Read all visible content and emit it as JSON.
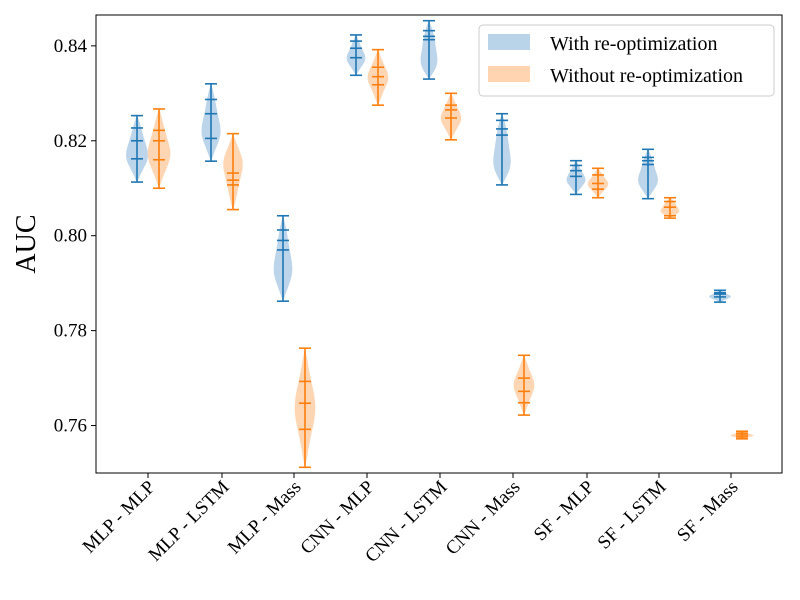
{
  "chart_data": {
    "type": "violin",
    "ylabel": "AUC",
    "xlabel": "",
    "ylim": [
      0.75,
      0.8465
    ],
    "yticks": [
      0.76,
      0.78,
      0.8,
      0.82,
      0.84
    ],
    "ytick_labels": [
      "0.76",
      "0.78",
      "0.80",
      "0.82",
      "0.84"
    ],
    "categories": [
      "MLP - MLP",
      "MLP - LSTM",
      "MLP - Mass",
      "CNN - MLP",
      "CNN - LSTM",
      "CNN - Mass",
      "SF - MLP",
      "SF - LSTM",
      "SF - Mass"
    ],
    "legend": {
      "position": "top-right",
      "entries": [
        "With re-optimization",
        "Without re-optimization"
      ]
    },
    "series": [
      {
        "name": "With re-optimization",
        "color": "#1f77b4",
        "fill": "#b9d3e9",
        "violins": [
          {
            "min": 0.8113,
            "max": 0.8253,
            "quantiles": [
              0.8162,
              0.82,
              0.8227
            ],
            "width": 0.9,
            "peak": 0.65
          },
          {
            "min": 0.8157,
            "max": 0.832,
            "quantiles": [
              0.8205,
              0.8257,
              0.8287
            ],
            "width": 0.8,
            "peak": 0.68
          },
          {
            "min": 0.7862,
            "max": 0.8042,
            "quantiles": [
              0.797,
              0.799,
              0.8012
            ],
            "width": 0.8,
            "peak": 0.7
          },
          {
            "min": 0.8338,
            "max": 0.8423,
            "quantiles": [
              0.8375,
              0.8395,
              0.841
            ],
            "width": 0.75,
            "peak": 0.62
          },
          {
            "min": 0.833,
            "max": 0.8453,
            "quantiles": [
              0.8413,
              0.842,
              0.8432
            ],
            "width": 0.85,
            "peak": 0.82
          },
          {
            "min": 0.8107,
            "max": 0.8257,
            "quantiles": [
              0.8212,
              0.8225,
              0.8243
            ],
            "width": 0.85,
            "peak": 0.8
          },
          {
            "min": 0.8087,
            "max": 0.8158,
            "quantiles": [
              0.8125,
              0.8137,
              0.8148
            ],
            "width": 0.75,
            "peak": 0.6
          },
          {
            "min": 0.8078,
            "max": 0.8182,
            "quantiles": [
              0.815,
              0.8158,
              0.8165
            ],
            "width": 0.85,
            "peak": 0.7
          },
          {
            "min": 0.786,
            "max": 0.7885,
            "quantiles": [
              0.7871,
              0.7877,
              0.788
            ],
            "width": 0.85,
            "peak": 0.55
          }
        ]
      },
      {
        "name": "Without re-optimization",
        "color": "#ff7f0e",
        "fill": "#ffd4b0",
        "violins": [
          {
            "min": 0.81,
            "max": 0.8267,
            "quantiles": [
              0.816,
              0.82,
              0.8222
            ],
            "width": 0.9,
            "peak": 0.6
          },
          {
            "min": 0.8055,
            "max": 0.8215,
            "quantiles": [
              0.8107,
              0.8117,
              0.8132
            ],
            "width": 0.8,
            "peak": 0.35
          },
          {
            "min": 0.7512,
            "max": 0.7763,
            "quantiles": [
              0.7592,
              0.7647,
              0.7693
            ],
            "width": 0.8,
            "peak": 0.5
          },
          {
            "min": 0.8275,
            "max": 0.8392,
            "quantiles": [
              0.8318,
              0.8335,
              0.8355
            ],
            "width": 0.8,
            "peak": 0.5
          },
          {
            "min": 0.8202,
            "max": 0.83,
            "quantiles": [
              0.8248,
              0.8265,
              0.8275
            ],
            "width": 0.8,
            "peak": 0.55
          },
          {
            "min": 0.7622,
            "max": 0.7748,
            "quantiles": [
              0.7648,
              0.7672,
              0.77
            ],
            "width": 0.8,
            "peak": 0.5
          },
          {
            "min": 0.808,
            "max": 0.8142,
            "quantiles": [
              0.8098,
              0.811,
              0.8128
            ],
            "width": 0.8,
            "peak": 0.55
          },
          {
            "min": 0.8037,
            "max": 0.808,
            "quantiles": [
              0.8042,
              0.806,
              0.8072
            ],
            "width": 0.85,
            "peak": 0.75
          },
          {
            "min": 0.7572,
            "max": 0.7588,
            "quantiles": [
              0.7576,
              0.758,
              0.7584
            ],
            "width": 0.9,
            "peak": 0.6
          }
        ]
      }
    ]
  }
}
